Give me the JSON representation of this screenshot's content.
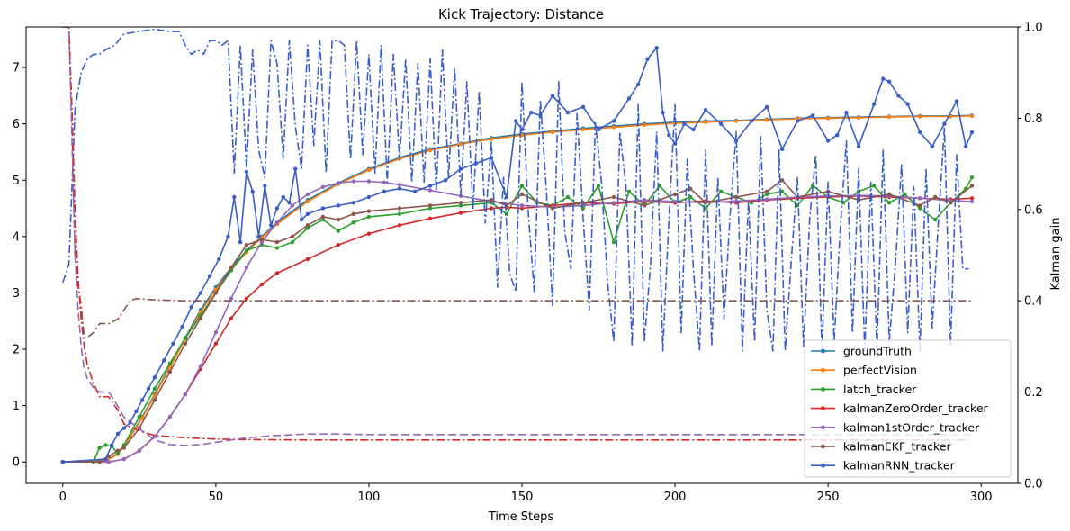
{
  "chart_data": {
    "type": "line",
    "title": "Kick Trajectory: Distance",
    "xlabel": "Time Steps",
    "ylabel": "",
    "y2label": "Kalman gain",
    "xlim": [
      -12,
      312
    ],
    "ylim": [
      -0.38,
      7.72
    ],
    "y2lim": [
      0,
      1
    ],
    "xticks": [
      0,
      50,
      100,
      150,
      200,
      250,
      300
    ],
    "yticks": [
      0,
      1,
      2,
      3,
      4,
      5,
      6,
      7
    ],
    "y2ticks": [
      0.0,
      0.2,
      0.4,
      0.6,
      0.8,
      1.0
    ],
    "legend_position": "lower right",
    "series": [
      {
        "name": "groundTruth",
        "color": "#1f77b4",
        "marker": true,
        "axis": "left",
        "x": [
          0,
          14,
          18,
          22,
          26,
          30,
          35,
          40,
          45,
          50,
          55,
          60,
          65,
          70,
          80,
          90,
          100,
          110,
          120,
          130,
          140,
          150,
          160,
          170,
          180,
          190,
          200,
          210,
          220,
          230,
          240,
          250,
          260,
          270,
          280,
          290,
          297
        ],
        "y": [
          0,
          0.02,
          0.15,
          0.45,
          0.8,
          1.2,
          1.7,
          2.2,
          2.7,
          3.1,
          3.45,
          3.75,
          4.0,
          4.25,
          4.65,
          4.95,
          5.2,
          5.4,
          5.55,
          5.65,
          5.75,
          5.82,
          5.87,
          5.92,
          5.96,
          6.0,
          6.03,
          6.05,
          6.06,
          6.08,
          6.1,
          6.11,
          6.12,
          6.13,
          6.14,
          6.14,
          6.15
        ]
      },
      {
        "name": "perfectVision",
        "color": "#ff7f0e",
        "marker": true,
        "axis": "left",
        "x": [
          0,
          14,
          18,
          22,
          26,
          30,
          35,
          40,
          45,
          50,
          55,
          60,
          65,
          70,
          80,
          90,
          100,
          110,
          120,
          130,
          140,
          150,
          160,
          170,
          180,
          190,
          200,
          210,
          220,
          230,
          240,
          250,
          260,
          270,
          280,
          290,
          297
        ],
        "y": [
          0,
          0.02,
          0.14,
          0.44,
          0.78,
          1.18,
          1.68,
          2.18,
          2.66,
          3.06,
          3.42,
          3.72,
          3.98,
          4.22,
          4.62,
          4.93,
          5.18,
          5.38,
          5.53,
          5.64,
          5.73,
          5.8,
          5.85,
          5.9,
          5.94,
          5.98,
          6.01,
          6.03,
          6.05,
          6.07,
          6.09,
          6.1,
          6.11,
          6.12,
          6.13,
          6.13,
          6.14
        ]
      },
      {
        "name": "latch_tracker",
        "color": "#2ca02c",
        "marker": true,
        "axis": "left",
        "x": [
          0,
          10,
          12,
          14,
          16,
          18,
          20,
          25,
          30,
          35,
          40,
          45,
          50,
          55,
          60,
          65,
          70,
          75,
          80,
          85,
          90,
          95,
          100,
          110,
          120,
          130,
          140,
          145,
          150,
          155,
          160,
          165,
          170,
          175,
          180,
          185,
          190,
          195,
          200,
          205,
          210,
          215,
          220,
          225,
          230,
          235,
          240,
          245,
          250,
          255,
          260,
          265,
          270,
          275,
          280,
          285,
          290,
          295,
          297
        ],
        "y": [
          0,
          0,
          0.25,
          0.3,
          0.28,
          0.15,
          0.3,
          0.8,
          1.3,
          1.75,
          2.2,
          2.6,
          3.0,
          3.4,
          3.75,
          3.85,
          3.8,
          3.9,
          4.15,
          4.3,
          4.1,
          4.25,
          4.35,
          4.4,
          4.5,
          4.55,
          4.6,
          4.4,
          4.9,
          4.6,
          4.55,
          4.7,
          4.5,
          4.9,
          3.9,
          4.8,
          4.55,
          4.9,
          4.6,
          4.7,
          4.5,
          4.8,
          4.7,
          4.6,
          4.75,
          4.8,
          4.55,
          4.9,
          4.7,
          4.6,
          4.8,
          4.9,
          4.6,
          4.75,
          4.5,
          4.3,
          4.6,
          4.85,
          5.05
        ]
      },
      {
        "name": "kalmanZeroOrder_tracker",
        "color": "#d62728",
        "marker": true,
        "axis": "left",
        "x": [
          0,
          15,
          20,
          25,
          30,
          35,
          40,
          45,
          50,
          55,
          60,
          65,
          70,
          80,
          90,
          100,
          110,
          120,
          130,
          140,
          145,
          150,
          160,
          170,
          180,
          190,
          200,
          210,
          220,
          230,
          240,
          250,
          260,
          270,
          280,
          290,
          297
        ],
        "y": [
          0,
          0,
          0.05,
          0.2,
          0.45,
          0.8,
          1.2,
          1.65,
          2.1,
          2.55,
          2.9,
          3.15,
          3.35,
          3.6,
          3.85,
          4.05,
          4.2,
          4.32,
          4.42,
          4.5,
          4.52,
          4.5,
          4.55,
          4.6,
          4.58,
          4.62,
          4.6,
          4.63,
          4.6,
          4.65,
          4.68,
          4.7,
          4.72,
          4.7,
          4.68,
          4.66,
          4.68
        ]
      },
      {
        "name": "kalman1stOrder_tracker",
        "color": "#9467bd",
        "marker": true,
        "axis": "left",
        "x": [
          0,
          15,
          20,
          25,
          30,
          35,
          40,
          45,
          50,
          55,
          60,
          65,
          70,
          75,
          80,
          85,
          90,
          95,
          100,
          105,
          110,
          120,
          130,
          140,
          150,
          160,
          170,
          180,
          190,
          200,
          210,
          220,
          230,
          240,
          250,
          260,
          270,
          280,
          290,
          297
        ],
        "y": [
          0,
          0,
          0.05,
          0.2,
          0.45,
          0.8,
          1.2,
          1.7,
          2.3,
          2.9,
          3.45,
          3.9,
          4.25,
          4.55,
          4.75,
          4.88,
          4.95,
          4.98,
          4.98,
          4.96,
          4.92,
          4.82,
          4.72,
          4.62,
          4.55,
          4.52,
          4.55,
          4.6,
          4.65,
          4.62,
          4.6,
          4.63,
          4.66,
          4.7,
          4.72,
          4.73,
          4.72,
          4.68,
          4.64,
          4.62
        ]
      },
      {
        "name": "kalmanEKF_tracker",
        "color": "#8c564b",
        "marker": true,
        "axis": "left",
        "x": [
          0,
          12,
          15,
          18,
          20,
          25,
          30,
          35,
          40,
          45,
          50,
          55,
          60,
          65,
          70,
          75,
          80,
          85,
          90,
          95,
          100,
          110,
          120,
          130,
          140,
          145,
          150,
          160,
          170,
          180,
          190,
          200,
          205,
          210,
          220,
          230,
          235,
          240,
          250,
          260,
          270,
          280,
          285,
          290,
          297
        ],
        "y": [
          0,
          0,
          0.1,
          0.2,
          0.25,
          0.6,
          1.1,
          1.6,
          2.1,
          2.55,
          3.0,
          3.45,
          3.85,
          3.95,
          3.9,
          4.0,
          4.2,
          4.35,
          4.3,
          4.4,
          4.45,
          4.5,
          4.55,
          4.6,
          4.65,
          4.55,
          4.75,
          4.5,
          4.6,
          4.7,
          4.55,
          4.75,
          4.85,
          4.6,
          4.7,
          4.8,
          5.0,
          4.7,
          4.8,
          4.65,
          4.75,
          4.55,
          4.7,
          4.6,
          4.9
        ]
      },
      {
        "name": "kalmanRNN_tracker",
        "color": "#3a5ec8",
        "marker": true,
        "axis": "left",
        "x": [
          0,
          14,
          16,
          18,
          20,
          22,
          24,
          26,
          28,
          30,
          33,
          36,
          39,
          42,
          45,
          48,
          51,
          54,
          56,
          58,
          60,
          62,
          64,
          66,
          68,
          70,
          72,
          74,
          76,
          78,
          80,
          85,
          90,
          95,
          100,
          105,
          110,
          115,
          120,
          125,
          130,
          135,
          140,
          145,
          148,
          150,
          153,
          156,
          160,
          165,
          170,
          175,
          180,
          185,
          188,
          191,
          194,
          196,
          198,
          200,
          203,
          206,
          210,
          215,
          220,
          225,
          230,
          235,
          240,
          245,
          250,
          253,
          256,
          260,
          265,
          268,
          270,
          273,
          276,
          280,
          284,
          288,
          292,
          295,
          297
        ],
        "y": [
          0,
          0.05,
          0.3,
          0.5,
          0.6,
          0.7,
          0.9,
          1.1,
          1.3,
          1.5,
          1.8,
          2.1,
          2.4,
          2.75,
          3.0,
          3.3,
          3.6,
          4.0,
          4.7,
          3.9,
          5.15,
          4.8,
          4.0,
          4.9,
          4.2,
          4.5,
          4.7,
          4.6,
          5.2,
          4.3,
          4.4,
          4.5,
          4.55,
          4.6,
          4.7,
          4.8,
          4.85,
          4.8,
          4.9,
          5.0,
          5.2,
          5.3,
          5.4,
          4.7,
          6.05,
          5.9,
          6.2,
          6.15,
          6.5,
          6.2,
          6.3,
          5.9,
          6.05,
          6.45,
          6.7,
          7.15,
          7.35,
          6.2,
          5.8,
          5.65,
          6.0,
          5.9,
          6.25,
          6.0,
          5.7,
          6.05,
          6.3,
          5.55,
          6.05,
          6.15,
          5.7,
          5.8,
          6.2,
          5.6,
          6.35,
          6.8,
          6.75,
          6.5,
          6.35,
          5.85,
          5.6,
          6.0,
          6.4,
          5.6,
          5.85
        ]
      },
      {
        "name": "",
        "color": "#3a5ec8",
        "marker": false,
        "dash": "dashdot",
        "axis": "right",
        "x": [
          0,
          2,
          4,
          6,
          8,
          10,
          12,
          14,
          17,
          20,
          25,
          30,
          35,
          38,
          40,
          42,
          44,
          46,
          48,
          50,
          52,
          54,
          56,
          58,
          60,
          62,
          64,
          66,
          68,
          70,
          72,
          74,
          76,
          78,
          80,
          82,
          84,
          86,
          88,
          90,
          92,
          94,
          96,
          98,
          100,
          102,
          104,
          106,
          108,
          110,
          112,
          114,
          116,
          118,
          120,
          122,
          124,
          126,
          128,
          130,
          132,
          134,
          136,
          138,
          140,
          142,
          144,
          146,
          148,
          150,
          152,
          154,
          156,
          158,
          160,
          162,
          164,
          166,
          168,
          170,
          172,
          174,
          176,
          178,
          180,
          182,
          184,
          186,
          188,
          190,
          192,
          194,
          196,
          198,
          200,
          202,
          204,
          206,
          208,
          210,
          212,
          214,
          216,
          218,
          220,
          222,
          224,
          226,
          228,
          230,
          232,
          234,
          236,
          238,
          240,
          242,
          244,
          246,
          248,
          250,
          252,
          254,
          256,
          258,
          260,
          262,
          264,
          266,
          268,
          270,
          272,
          274,
          276,
          278,
          280,
          282,
          284,
          286,
          288,
          290,
          292,
          294,
          296
        ],
        "y": [
          0.44,
          0.48,
          0.82,
          0.9,
          0.93,
          0.94,
          0.94,
          0.95,
          0.96,
          0.985,
          0.99,
          0.995,
          0.99,
          0.99,
          0.96,
          0.94,
          0.95,
          0.94,
          0.97,
          0.97,
          0.96,
          0.97,
          0.68,
          0.96,
          0.69,
          0.95,
          0.73,
          0.67,
          0.97,
          0.92,
          0.71,
          0.97,
          0.78,
          0.69,
          0.96,
          0.74,
          0.97,
          0.68,
          0.97,
          0.97,
          0.96,
          0.71,
          0.97,
          0.72,
          0.94,
          0.68,
          0.96,
          0.66,
          0.94,
          0.71,
          0.93,
          0.66,
          0.92,
          0.66,
          0.93,
          0.64,
          0.95,
          0.67,
          0.91,
          0.63,
          0.88,
          0.6,
          0.86,
          0.57,
          0.75,
          0.43,
          0.67,
          0.46,
          0.42,
          0.88,
          0.6,
          0.42,
          0.84,
          0.64,
          0.39,
          0.88,
          0.55,
          0.47,
          0.81,
          0.58,
          0.38,
          0.79,
          0.66,
          0.44,
          0.31,
          0.77,
          0.65,
          0.3,
          0.83,
          0.31,
          0.48,
          0.77,
          0.29,
          0.58,
          0.83,
          0.33,
          0.71,
          0.47,
          0.29,
          0.73,
          0.3,
          0.67,
          0.36,
          0.59,
          0.77,
          0.29,
          0.62,
          0.31,
          0.76,
          0.38,
          0.29,
          0.73,
          0.29,
          0.49,
          0.67,
          0.3,
          0.58,
          0.72,
          0.29,
          0.66,
          0.31,
          0.56,
          0.75,
          0.33,
          0.69,
          0.29,
          0.66,
          0.29,
          0.73,
          0.31,
          0.48,
          0.7,
          0.33,
          0.65,
          0.29,
          0.69,
          0.34,
          0.57,
          0.78,
          0.3,
          0.72,
          0.47,
          0.47
        ]
      },
      {
        "name": "",
        "color": "#8c564b",
        "marker": false,
        "dash": "dashdot",
        "axis": "right",
        "x": [
          0,
          2,
          3,
          4,
          5,
          6,
          7,
          8,
          10,
          12,
          15,
          18,
          20,
          22,
          24,
          30,
          40,
          60,
          100,
          150,
          200,
          250,
          297
        ],
        "y": [
          1.0,
          1.0,
          0.8,
          0.5,
          0.43,
          0.39,
          0.32,
          0.32,
          0.33,
          0.35,
          0.35,
          0.36,
          0.38,
          0.4,
          0.405,
          0.402,
          0.4,
          0.4,
          0.4,
          0.4,
          0.4,
          0.4,
          0.4
        ]
      },
      {
        "name": "",
        "color": "#d62728",
        "marker": false,
        "dash": "dashdot",
        "axis": "right",
        "x": [
          0,
          2,
          3,
          4,
          5,
          6,
          7,
          8,
          10,
          12,
          15,
          18,
          20,
          25,
          30,
          40,
          50,
          60,
          80,
          100,
          150,
          200,
          250,
          297
        ],
        "y": [
          1.0,
          1.0,
          0.82,
          0.6,
          0.45,
          0.36,
          0.3,
          0.26,
          0.22,
          0.19,
          0.19,
          0.16,
          0.13,
          0.115,
          0.105,
          0.1,
          0.097,
          0.096,
          0.095,
          0.095,
          0.095,
          0.095,
          0.095,
          0.095
        ]
      },
      {
        "name": "",
        "color": "#9467bd",
        "marker": false,
        "dash": "dashed",
        "axis": "right",
        "x": [
          0,
          2,
          3,
          4,
          5,
          6,
          7,
          8,
          10,
          12,
          15,
          17,
          20,
          25,
          30,
          35,
          40,
          45,
          50,
          60,
          70,
          80,
          90,
          100,
          150,
          200,
          250,
          297
        ],
        "y": [
          1.0,
          1.0,
          0.75,
          0.5,
          0.38,
          0.3,
          0.25,
          0.23,
          0.21,
          0.2,
          0.2,
          0.18,
          0.145,
          0.12,
          0.095,
          0.085,
          0.083,
          0.085,
          0.09,
          0.1,
          0.105,
          0.108,
          0.108,
          0.107,
          0.107,
          0.107,
          0.107,
          0.107
        ]
      }
    ]
  }
}
